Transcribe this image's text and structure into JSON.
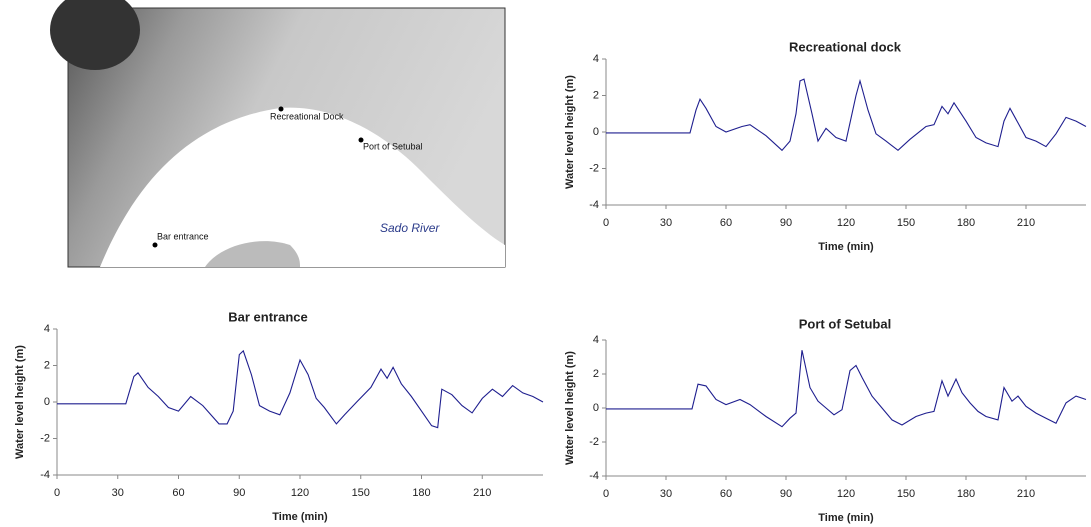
{
  "map": {
    "labels": [
      "Recreational Dock",
      "Port of Setubal",
      "Bar entrance",
      "Sado River"
    ]
  },
  "chart_data": [
    {
      "type": "line",
      "title": "Recreational dock",
      "x_label": "Time (min)",
      "y_label": "Water level height (m)",
      "color": "#1f1f8f",
      "xlim": [
        0,
        240
      ],
      "ylim": [
        -4,
        4
      ],
      "xticks": [
        0,
        30,
        60,
        90,
        120,
        150,
        180,
        210
      ],
      "yticks": [
        4,
        2,
        0,
        -2,
        -4
      ],
      "x": [
        0,
        42,
        45,
        47,
        50,
        55,
        60,
        68,
        72,
        80,
        88,
        92,
        95,
        97,
        99,
        103,
        106,
        110,
        115,
        120,
        125,
        127,
        131,
        135,
        140,
        146,
        152,
        160,
        164,
        168,
        171,
        174,
        180,
        185,
        190,
        196,
        199,
        202,
        206,
        210,
        215,
        220,
        225,
        230,
        235,
        240
      ],
      "values": [
        -0.05,
        -0.05,
        1.2,
        1.8,
        1.3,
        0.3,
        0.0,
        0.3,
        0.4,
        -0.2,
        -1.0,
        -0.5,
        1.0,
        2.8,
        2.9,
        1.0,
        -0.5,
        0.2,
        -0.3,
        -0.5,
        2.0,
        2.8,
        1.2,
        -0.1,
        -0.5,
        -1.0,
        -0.4,
        0.3,
        0.4,
        1.4,
        1.0,
        1.6,
        0.6,
        -0.3,
        -0.6,
        -0.8,
        0.6,
        1.3,
        0.5,
        -0.3,
        -0.5,
        -0.8,
        -0.1,
        0.8,
        0.6,
        0.3
      ]
    },
    {
      "type": "line",
      "title": "Bar entrance",
      "x_label": "Time (min)",
      "y_label": "Water level height (m)",
      "color": "#1f1f8f",
      "xlim": [
        0,
        240
      ],
      "ylim": [
        -4,
        4
      ],
      "xticks": [
        0,
        30,
        60,
        90,
        120,
        150,
        180,
        210
      ],
      "yticks": [
        4,
        2,
        0,
        -2,
        -4
      ],
      "x": [
        0,
        34,
        38,
        40,
        45,
        50,
        55,
        60,
        66,
        72,
        80,
        84,
        87,
        90,
        92,
        96,
        100,
        105,
        110,
        115,
        120,
        124,
        128,
        132,
        138,
        142,
        148,
        155,
        160,
        163,
        166,
        170,
        175,
        180,
        185,
        188,
        190,
        195,
        200,
        205,
        210,
        215,
        220,
        225,
        230,
        235,
        240
      ],
      "values": [
        -0.1,
        -0.1,
        1.4,
        1.6,
        0.8,
        0.3,
        -0.3,
        -0.5,
        0.3,
        -0.2,
        -1.2,
        -1.2,
        -0.5,
        2.6,
        2.8,
        1.5,
        -0.2,
        -0.5,
        -0.7,
        0.5,
        2.3,
        1.5,
        0.2,
        -0.3,
        -1.2,
        -0.7,
        0.0,
        0.8,
        1.8,
        1.3,
        1.9,
        1.0,
        0.3,
        -0.5,
        -1.3,
        -1.4,
        0.7,
        0.4,
        -0.2,
        -0.6,
        0.2,
        0.7,
        0.3,
        0.9,
        0.5,
        0.3,
        0.0
      ]
    },
    {
      "type": "line",
      "title": "Port of Setubal",
      "x_label": "Time (min)",
      "y_label": "Water level height (m)",
      "color": "#1f1f8f",
      "xlim": [
        0,
        240
      ],
      "ylim": [
        -4,
        4
      ],
      "xticks": [
        0,
        30,
        60,
        90,
        120,
        150,
        180,
        210
      ],
      "yticks": [
        4,
        2,
        0,
        -2,
        -4
      ],
      "x": [
        0,
        43,
        46,
        50,
        55,
        60,
        67,
        72,
        80,
        88,
        92,
        95,
        98,
        102,
        106,
        110,
        114,
        118,
        122,
        125,
        128,
        133,
        138,
        143,
        148,
        155,
        160,
        164,
        168,
        171,
        175,
        178,
        182,
        186,
        190,
        196,
        199,
        203,
        206,
        210,
        215,
        220,
        225,
        230,
        235,
        240
      ],
      "values": [
        -0.05,
        -0.05,
        1.4,
        1.3,
        0.5,
        0.2,
        0.5,
        0.2,
        -0.5,
        -1.1,
        -0.6,
        -0.3,
        3.4,
        1.2,
        0.4,
        0.0,
        -0.4,
        -0.1,
        2.2,
        2.5,
        1.8,
        0.7,
        0.0,
        -0.7,
        -1.0,
        -0.5,
        -0.3,
        -0.2,
        1.6,
        0.7,
        1.7,
        0.9,
        0.3,
        -0.2,
        -0.5,
        -0.7,
        1.2,
        0.4,
        0.7,
        0.1,
        -0.3,
        -0.6,
        -0.9,
        0.3,
        0.7,
        0.5
      ]
    }
  ]
}
